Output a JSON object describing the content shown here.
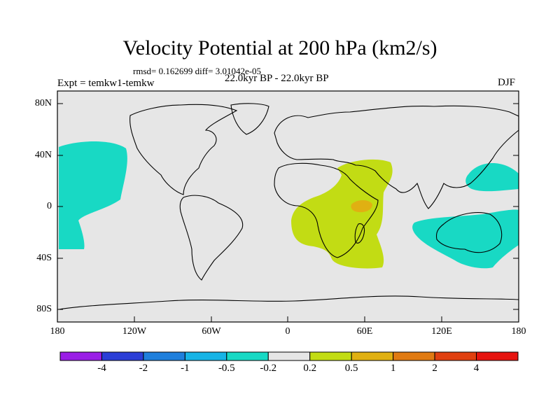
{
  "title": "Velocity Potential at 200 hPa (km2/s)",
  "stats": "rmsd= 0.162699 diff= 3.01042e-05",
  "experiment": "Expt = temkw1-temkw",
  "period": "22.0kyr BP - 22.0kyr BP",
  "season": "DJF",
  "y_ticks": [
    "80N",
    "40N",
    "0",
    "40S",
    "80S"
  ],
  "x_ticks": [
    "180",
    "120W",
    "60W",
    "0",
    "60E",
    "120E",
    "180"
  ],
  "colorbar": {
    "colors": [
      "#9a1ee6",
      "#2b3ed6",
      "#1f7fdc",
      "#17b4e6",
      "#18d9c4",
      "#e6e6e6",
      "#c2dc14",
      "#e0b012",
      "#e07a12",
      "#e04010",
      "#e6140f"
    ],
    "labels": [
      "-4",
      "-2",
      "-1",
      "-0.5",
      "-0.2",
      "0.2",
      "0.5",
      "1",
      "2",
      "4"
    ]
  },
  "map": {
    "background_color": "#e6e6e6",
    "regions": [
      {
        "name": "Central Pacific negative anomaly",
        "level": "-0.5 to -0.2",
        "color": "#18d9c4"
      },
      {
        "name": "Africa / Arabia / Indian Ocean positive anomaly",
        "level": "0.2 to 0.5",
        "color": "#c2dc14"
      },
      {
        "name": "East Africa maximum",
        "level": "0.5 to 1",
        "color": "#e0b012"
      },
      {
        "name": "West Pacific negative anomaly",
        "level": "-0.5 to -0.2",
        "color": "#18d9c4"
      },
      {
        "name": "Australia negative anomaly",
        "level": "-0.5 to -0.2",
        "color": "#18d9c4"
      }
    ]
  }
}
